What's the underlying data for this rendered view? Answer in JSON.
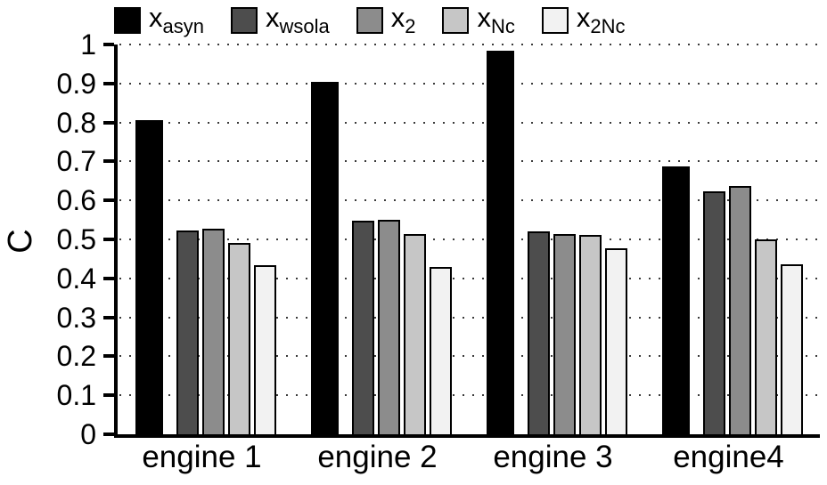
{
  "chart_data": {
    "type": "bar",
    "title": "",
    "xlabel": "",
    "ylabel": "C",
    "ylim": [
      0,
      1
    ],
    "grid": "dotted-horizontal",
    "legend_position": "top",
    "bar_border_color": "#000000",
    "categories": [
      "engine 1",
      "engine 2",
      "engine 3",
      "engine4"
    ],
    "yticks": [
      {
        "value": 0,
        "label": "0"
      },
      {
        "value": 0.1,
        "label": "0.1"
      },
      {
        "value": 0.2,
        "label": "0.2"
      },
      {
        "value": 0.3,
        "label": "0.3"
      },
      {
        "value": 0.4,
        "label": "0.4"
      },
      {
        "value": 0.5,
        "label": "0.5"
      },
      {
        "value": 0.6,
        "label": "0.6"
      },
      {
        "value": 0.7,
        "label": "0.7"
      },
      {
        "value": 0.8,
        "label": "0.8"
      },
      {
        "value": 0.9,
        "label": "0.9"
      },
      {
        "value": 1,
        "label": "1"
      }
    ],
    "series": [
      {
        "name": "x_asyn",
        "label_base": "x",
        "label_sub": "asyn",
        "color": "#000000",
        "values": [
          0.805,
          0.905,
          0.985,
          0.687
        ]
      },
      {
        "name": "x_wsola",
        "label_base": "x",
        "label_sub": "wsola",
        "color": "#4d4d4d",
        "values": [
          0.524,
          0.549,
          0.52,
          0.624
        ]
      },
      {
        "name": "x_2",
        "label_base": "x",
        "label_sub": "2",
        "color": "#8c8c8c",
        "values": [
          0.528,
          0.551,
          0.514,
          0.638
        ]
      },
      {
        "name": "x_Nc",
        "label_base": "x",
        "label_sub": "Nc",
        "color": "#c6c6c6",
        "values": [
          0.492,
          0.514,
          0.511,
          0.5
        ]
      },
      {
        "name": "x_2Nc",
        "label_base": "x",
        "label_sub": "2Nc",
        "color": "#f2f2f2",
        "values": [
          0.434,
          0.43,
          0.478,
          0.435
        ]
      }
    ]
  }
}
